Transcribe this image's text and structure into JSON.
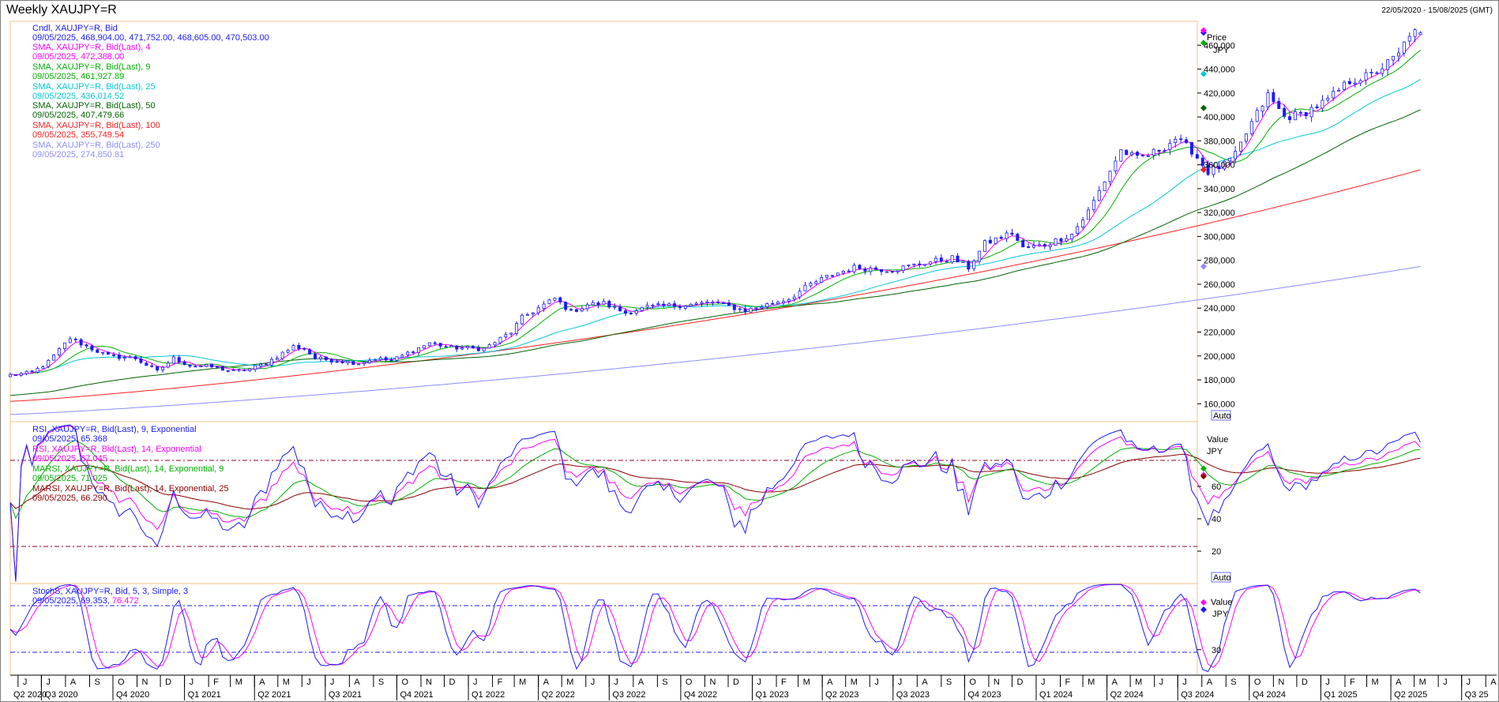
{
  "window": {
    "title": "Weekly XAUJPY=R",
    "date_range": "22/05/2020 - 15/08/2025 (GMT)"
  },
  "colors": {
    "candle": "#1a1aff",
    "sma4": "#ff00ff",
    "sma9": "#00b000",
    "sma25": "#00c8d8",
    "sma50": "#006400",
    "sma100": "#ff2020",
    "sma250": "#8c8cff",
    "rsi9": "#1a1aff",
    "rsi14": "#ff00ff",
    "marsi9": "#00b000",
    "marsi25": "#8b0000",
    "stoch_k": "#1a1aff",
    "stoch_d": "#ff00ff",
    "guide": "#8b0020",
    "panel_border": "#f5c08a"
  },
  "price_panel": {
    "legend": [
      {
        "label": "Cndl, XAUJPY=R, Bid",
        "color": "#1a1aff"
      },
      {
        "label": "09/05/2025, 468,904.00, 471,752.00, 468,605.00, 470,503.00",
        "color": "#1a1aff"
      },
      {
        "label": "SMA, XAUJPY=R, Bid(Last),  4",
        "color": "#ff00ff"
      },
      {
        "label": "09/05/2025, 472,388.00",
        "color": "#ff00ff"
      },
      {
        "label": "SMA, XAUJPY=R, Bid(Last),  9",
        "color": "#00b000"
      },
      {
        "label": "09/05/2025, 461,927.89",
        "color": "#00b000"
      },
      {
        "label": "SMA, XAUJPY=R, Bid(Last),  25",
        "color": "#00c8d8"
      },
      {
        "label": "09/05/2025, 436,014.52",
        "color": "#00c8d8"
      },
      {
        "label": "SMA, XAUJPY=R, Bid(Last),  50",
        "color": "#006400"
      },
      {
        "label": "09/05/2025, 407,479.66",
        "color": "#006400"
      },
      {
        "label": "SMA, XAUJPY=R, Bid(Last),  100",
        "color": "#ff2020"
      },
      {
        "label": "09/05/2025, 355,749.54",
        "color": "#ff2020"
      },
      {
        "label": "SMA, XAUJPY=R, Bid(Last),  250",
        "color": "#8c8cff"
      },
      {
        "label": "09/05/2025, 274,850.81",
        "color": "#8c8cff"
      }
    ],
    "axis_title": "Price",
    "unit": "JPY",
    "ticks": [
      "160,000",
      "180,000",
      "200,000",
      "220,000",
      "240,000",
      "260,000",
      "280,000",
      "300,000",
      "320,000",
      "340,000",
      "360,000",
      "380,000",
      "400,000",
      "420,000",
      "440,000",
      "460,000"
    ],
    "auto_label": "Auto"
  },
  "rsi_panel": {
    "legend": [
      {
        "label": "RSI, XAUJPY=R, Bid(Last),  9, Exponential",
        "color": "#1a1aff"
      },
      {
        "label": "09/05/2025, 65.368",
        "color": "#1a1aff"
      },
      {
        "label": "RSI, XAUJPY=R, Bid(Last),  14, Exponential",
        "color": "#ff00ff"
      },
      {
        "label": "09/05/2025, 67.045",
        "color": "#ff00ff"
      },
      {
        "label": "MARSI, XAUJPY=R, Bid(Last),  14, Exponential, 9",
        "color": "#00b000"
      },
      {
        "label": "09/05/2025, 71.025",
        "color": "#00b000"
      },
      {
        "label": "MARSI, XAUJPY=R, Bid(Last),  14, Exponential, 25",
        "color": "#8b0000"
      },
      {
        "label": "09/05/2025, 66.290",
        "color": "#8b0000"
      }
    ],
    "axis_title": "Value",
    "unit": "JPY",
    "ticks": [
      "20",
      "40",
      "60"
    ],
    "auto_label": "Auto"
  },
  "stoch_panel": {
    "legend_line1": "StochS, XAUJPY=R, Bid,  5, 3, Simple, 3",
    "legend_date": "09/05/2025, 69.353,",
    "legend_value": " 76.472",
    "axis_title": "Value",
    "unit": "JPY",
    "ticks": [
      "30"
    ]
  },
  "x_axis": {
    "months": [
      "J",
      "J",
      "A",
      "S",
      "O",
      "N",
      "D",
      "J",
      "F",
      "M",
      "A",
      "M",
      "J",
      "J",
      "A",
      "S",
      "O",
      "N",
      "D",
      "J",
      "F",
      "M",
      "A",
      "M",
      "J",
      "J",
      "A",
      "S",
      "O",
      "N",
      "D",
      "J",
      "F",
      "M",
      "A",
      "M",
      "J",
      "J",
      "A",
      "S",
      "O",
      "N",
      "D",
      "J",
      "F",
      "M",
      "A",
      "M",
      "J",
      "J",
      "A",
      "S",
      "O",
      "N",
      "D",
      "J",
      "F",
      "M",
      "A",
      "M",
      "J",
      "J",
      "A"
    ],
    "quarters": [
      "Q2 2020",
      "Q3 2020",
      "Q4 2020",
      "Q1 2021",
      "Q2 2021",
      "Q3 2021",
      "Q4 2021",
      "Q1 2022",
      "Q2 2022",
      "Q3 2022",
      "Q4 2022",
      "Q1 2023",
      "Q2 2023",
      "Q3 2023",
      "Q4 2023",
      "Q1 2024",
      "Q2 2024",
      "Q3 2024",
      "Q4 2024",
      "Q1 2025",
      "Q2 2025",
      "Q3 25"
    ]
  },
  "chart_data": {
    "type": "candlestick",
    "interval": "weekly",
    "instrument": "XAUJPY=R",
    "x_start": "2020-05-22",
    "x_end": "2025-08-15",
    "last_bar_date": "2025-05-09",
    "last_bar": {
      "open": 468904,
      "high": 471752,
      "low": 468605,
      "close": 470503
    },
    "price_ylim": [
      145000,
      480000
    ],
    "close_anchors": [
      [
        "2020-05-22",
        184000
      ],
      [
        "2020-06-19",
        186000
      ],
      [
        "2020-07-10",
        195000
      ],
      [
        "2020-07-31",
        210000
      ],
      [
        "2020-08-07",
        215000
      ],
      [
        "2020-08-28",
        208000
      ],
      [
        "2020-09-25",
        200000
      ],
      [
        "2020-10-30",
        198000
      ],
      [
        "2020-11-27",
        187000
      ],
      [
        "2020-12-18",
        198000
      ],
      [
        "2021-01-08",
        192000
      ],
      [
        "2021-02-05",
        191000
      ],
      [
        "2021-03-05",
        187000
      ],
      [
        "2021-03-26",
        189000
      ],
      [
        "2021-04-16",
        194000
      ],
      [
        "2021-05-21",
        208000
      ],
      [
        "2021-06-04",
        206000
      ],
      [
        "2021-06-18",
        198000
      ],
      [
        "2021-08-13",
        194000
      ],
      [
        "2021-09-03",
        198000
      ],
      [
        "2021-09-24",
        196000
      ],
      [
        "2021-11-12",
        211000
      ],
      [
        "2021-12-10",
        207000
      ],
      [
        "2022-01-21",
        206000
      ],
      [
        "2022-02-25",
        220000
      ],
      [
        "2022-03-11",
        232000
      ],
      [
        "2022-04-22",
        248000
      ],
      [
        "2022-05-13",
        237000
      ],
      [
        "2022-06-03",
        243000
      ],
      [
        "2022-06-24",
        244000
      ],
      [
        "2022-07-22",
        236000
      ],
      [
        "2022-08-19",
        241000
      ],
      [
        "2022-10-14",
        243000
      ],
      [
        "2022-11-11",
        245000
      ],
      [
        "2022-12-23",
        238000
      ],
      [
        "2023-01-20",
        243000
      ],
      [
        "2023-02-17",
        248000
      ],
      [
        "2023-03-17",
        260000
      ],
      [
        "2023-04-14",
        268000
      ],
      [
        "2023-05-12",
        274000
      ],
      [
        "2023-06-30",
        272000
      ],
      [
        "2023-08-11",
        278000
      ],
      [
        "2023-09-15",
        282000
      ],
      [
        "2023-10-06",
        274000
      ],
      [
        "2023-10-27",
        294000
      ],
      [
        "2023-12-01",
        303000
      ],
      [
        "2023-12-15",
        290000
      ],
      [
        "2024-01-12",
        293000
      ],
      [
        "2024-02-16",
        302000
      ],
      [
        "2024-03-08",
        321000
      ],
      [
        "2024-04-05",
        355000
      ],
      [
        "2024-04-19",
        372000
      ],
      [
        "2024-05-10",
        365000
      ],
      [
        "2024-05-24",
        368000
      ],
      [
        "2024-06-14",
        375000
      ],
      [
        "2024-06-28",
        382000
      ],
      [
        "2024-07-19",
        372000
      ],
      [
        "2024-08-09",
        354000
      ],
      [
        "2024-08-30",
        360000
      ],
      [
        "2024-09-13",
        368000
      ],
      [
        "2024-10-04",
        395000
      ],
      [
        "2024-10-25",
        418000
      ],
      [
        "2024-11-15",
        400000
      ],
      [
        "2024-12-06",
        402000
      ],
      [
        "2025-01-10",
        414000
      ],
      [
        "2025-02-07",
        430000
      ],
      [
        "2025-03-07",
        435000
      ],
      [
        "2025-03-28",
        445000
      ],
      [
        "2025-04-11",
        452000
      ],
      [
        "2025-04-25",
        470000
      ],
      [
        "2025-05-09",
        470503
      ]
    ],
    "sma_last": {
      "4": 472388.0,
      "9": 461927.89,
      "25": 436014.52,
      "50": 407479.66,
      "100": 355749.54,
      "250": 274850.81
    },
    "rsi_ylim": [
      0,
      100
    ],
    "rsi_guides": [
      80,
      20
    ],
    "rsi_last": {
      "rsi9": 65.368,
      "rsi14": 67.045,
      "marsi9": 71.025,
      "marsi25": 66.29
    },
    "stoch_ylim": [
      5,
      95
    ],
    "stoch_guides": [
      80,
      30
    ],
    "stoch_last": {
      "k": 69.353,
      "d": 76.472
    }
  }
}
